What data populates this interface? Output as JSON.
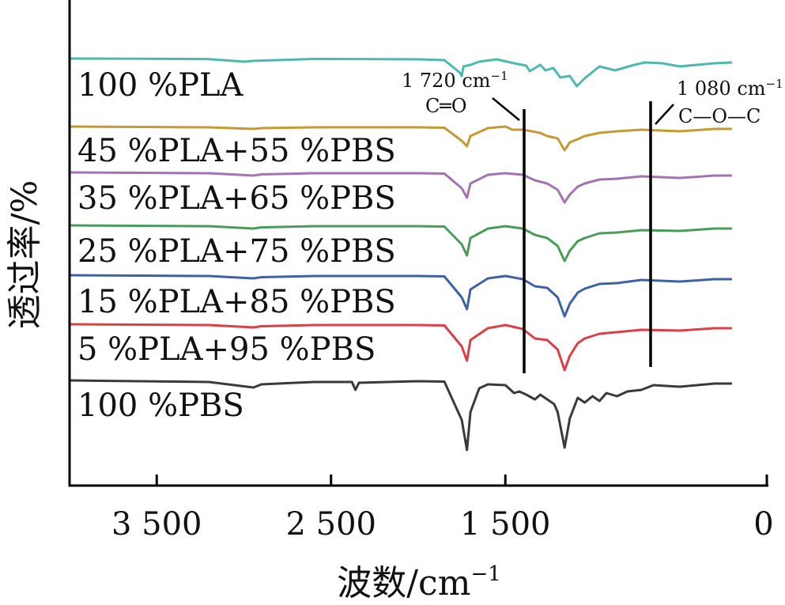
{
  "chart_data": {
    "type": "line",
    "title": "",
    "xlabel": "波数/cm",
    "xlabel_superscript": "−1",
    "ylabel": "透过率/%",
    "xlim": [
      4000,
      0
    ],
    "x_reversed": true,
    "x_ticks": [
      {
        "value": 3500,
        "label": "3 500"
      },
      {
        "value": 2500,
        "label": "2 500"
      },
      {
        "value": 1500,
        "label": "1 500"
      },
      {
        "value": 0,
        "label": "0"
      }
    ],
    "grid": false,
    "legend": "inline-labels-left",
    "x_range_plotted": [
      4000,
      200
    ],
    "series": [
      {
        "name": "100 %PLA",
        "color": "#4fb8ad",
        "points": [
          [
            4000,
            0
          ],
          [
            3600,
            0.2
          ],
          [
            3200,
            0.7
          ],
          [
            2997,
            4
          ],
          [
            2950,
            3
          ],
          [
            2600,
            0.5
          ],
          [
            2000,
            1
          ],
          [
            1850,
            2
          ],
          [
            1760,
            18
          ],
          [
            1750,
            22
          ],
          [
            1740,
            10
          ],
          [
            1700,
            8
          ],
          [
            1650,
            4
          ],
          [
            1550,
            1
          ],
          [
            1450,
            6
          ],
          [
            1380,
            9
          ],
          [
            1360,
            16
          ],
          [
            1300,
            8
          ],
          [
            1270,
            15
          ],
          [
            1225,
            12
          ],
          [
            1185,
            24
          ],
          [
            1130,
            22
          ],
          [
            1090,
            35
          ],
          [
            1045,
            25
          ],
          [
            960,
            10
          ],
          [
            870,
            15
          ],
          [
            760,
            8
          ],
          [
            700,
            5
          ],
          [
            600,
            6
          ],
          [
            500,
            10
          ],
          [
            300,
            6
          ],
          [
            200,
            5
          ]
        ]
      },
      {
        "name": "45 %PLA+55 %PBS",
        "color": "#c49a35",
        "points": [
          [
            4000,
            0
          ],
          [
            3600,
            0.5
          ],
          [
            3200,
            1
          ],
          [
            2945,
            3
          ],
          [
            2900,
            2
          ],
          [
            2600,
            1
          ],
          [
            2000,
            1
          ],
          [
            1850,
            1.5
          ],
          [
            1750,
            18
          ],
          [
            1720,
            25
          ],
          [
            1700,
            12
          ],
          [
            1600,
            2
          ],
          [
            1500,
            0
          ],
          [
            1460,
            4
          ],
          [
            1400,
            4
          ],
          [
            1300,
            8
          ],
          [
            1260,
            12
          ],
          [
            1200,
            15
          ],
          [
            1160,
            30
          ],
          [
            1130,
            20
          ],
          [
            1085,
            16
          ],
          [
            1045,
            12
          ],
          [
            960,
            8
          ],
          [
            860,
            6
          ],
          [
            720,
            4
          ],
          [
            500,
            6
          ],
          [
            300,
            3
          ],
          [
            200,
            3
          ]
        ]
      },
      {
        "name": "35 %PLA+65 %PBS",
        "color": "#a374b3",
        "points": [
          [
            4000,
            0
          ],
          [
            3600,
            0.5
          ],
          [
            3200,
            1
          ],
          [
            2945,
            4
          ],
          [
            2900,
            2.5
          ],
          [
            2600,
            1
          ],
          [
            2000,
            1
          ],
          [
            1850,
            1.5
          ],
          [
            1750,
            20
          ],
          [
            1720,
            32
          ],
          [
            1700,
            14
          ],
          [
            1600,
            3
          ],
          [
            1500,
            1
          ],
          [
            1400,
            3
          ],
          [
            1330,
            10
          ],
          [
            1260,
            14
          ],
          [
            1200,
            22
          ],
          [
            1160,
            38
          ],
          [
            1130,
            28
          ],
          [
            1085,
            18
          ],
          [
            1045,
            14
          ],
          [
            960,
            9
          ],
          [
            860,
            8
          ],
          [
            720,
            5
          ],
          [
            500,
            7
          ],
          [
            300,
            4
          ],
          [
            200,
            4
          ]
        ]
      },
      {
        "name": "25 %PLA+75 %PBS",
        "color": "#4a9b5c",
        "points": [
          [
            4000,
            0
          ],
          [
            3600,
            0.5
          ],
          [
            3200,
            1
          ],
          [
            2945,
            4
          ],
          [
            2900,
            2.5
          ],
          [
            2600,
            1
          ],
          [
            2000,
            1
          ],
          [
            1850,
            1.5
          ],
          [
            1750,
            24
          ],
          [
            1720,
            38
          ],
          [
            1700,
            16
          ],
          [
            1600,
            4
          ],
          [
            1500,
            1
          ],
          [
            1400,
            4
          ],
          [
            1330,
            12
          ],
          [
            1260,
            16
          ],
          [
            1200,
            26
          ],
          [
            1160,
            45
          ],
          [
            1130,
            32
          ],
          [
            1085,
            20
          ],
          [
            1045,
            16
          ],
          [
            960,
            10
          ],
          [
            860,
            9
          ],
          [
            720,
            6
          ],
          [
            500,
            7
          ],
          [
            300,
            4
          ],
          [
            200,
            4
          ]
        ]
      },
      {
        "name": "15 %PLA+85 %PBS",
        "color": "#3e62a5",
        "points": [
          [
            4000,
            0
          ],
          [
            3600,
            0.5
          ],
          [
            3200,
            1
          ],
          [
            2945,
            4
          ],
          [
            2900,
            2.5
          ],
          [
            2600,
            1
          ],
          [
            2000,
            1
          ],
          [
            1850,
            1.5
          ],
          [
            1750,
            28
          ],
          [
            1720,
            43
          ],
          [
            1700,
            18
          ],
          [
            1600,
            4
          ],
          [
            1500,
            1
          ],
          [
            1400,
            5
          ],
          [
            1330,
            14
          ],
          [
            1260,
            16
          ],
          [
            1200,
            28
          ],
          [
            1160,
            52
          ],
          [
            1130,
            36
          ],
          [
            1085,
            22
          ],
          [
            1045,
            17
          ],
          [
            960,
            11
          ],
          [
            860,
            10
          ],
          [
            720,
            6
          ],
          [
            500,
            8
          ],
          [
            300,
            5
          ],
          [
            200,
            5
          ]
        ]
      },
      {
        "name": "5 %PLA+95 %PBS",
        "color": "#d94047",
        "points": [
          [
            4000,
            0
          ],
          [
            3600,
            0.5
          ],
          [
            3200,
            1
          ],
          [
            2945,
            4
          ],
          [
            2900,
            2.5
          ],
          [
            2600,
            1
          ],
          [
            2000,
            1
          ],
          [
            1850,
            1.5
          ],
          [
            1750,
            28
          ],
          [
            1720,
            46
          ],
          [
            1700,
            20
          ],
          [
            1600,
            5
          ],
          [
            1500,
            1
          ],
          [
            1400,
            6
          ],
          [
            1330,
            18
          ],
          [
            1260,
            20
          ],
          [
            1200,
            32
          ],
          [
            1160,
            58
          ],
          [
            1130,
            40
          ],
          [
            1085,
            24
          ],
          [
            1045,
            18
          ],
          [
            960,
            12
          ],
          [
            860,
            10
          ],
          [
            720,
            7
          ],
          [
            500,
            8
          ],
          [
            300,
            5
          ],
          [
            200,
            5
          ]
        ]
      },
      {
        "name": "100 %PBS",
        "color": "#3a3a3a",
        "points": [
          [
            4000,
            0
          ],
          [
            3600,
            1
          ],
          [
            3200,
            2
          ],
          [
            2945,
            9
          ],
          [
            2900,
            5
          ],
          [
            2600,
            2
          ],
          [
            2380,
            2
          ],
          [
            2360,
            12
          ],
          [
            2340,
            3
          ],
          [
            2000,
            1
          ],
          [
            1850,
            1.5
          ],
          [
            1750,
            50
          ],
          [
            1720,
            88
          ],
          [
            1700,
            40
          ],
          [
            1650,
            10
          ],
          [
            1600,
            5
          ],
          [
            1500,
            6
          ],
          [
            1450,
            16
          ],
          [
            1420,
            14
          ],
          [
            1380,
            18
          ],
          [
            1330,
            24
          ],
          [
            1300,
            18
          ],
          [
            1260,
            24
          ],
          [
            1220,
            30
          ],
          [
            1200,
            40
          ],
          [
            1160,
            85
          ],
          [
            1130,
            48
          ],
          [
            1085,
            22
          ],
          [
            1045,
            28
          ],
          [
            1000,
            20
          ],
          [
            960,
            26
          ],
          [
            920,
            16
          ],
          [
            860,
            20
          ],
          [
            800,
            14
          ],
          [
            720,
            12
          ],
          [
            650,
            6
          ],
          [
            500,
            8
          ],
          [
            300,
            4
          ],
          [
            200,
            4
          ]
        ]
      }
    ],
    "annotations": [
      {
        "label": "1 720 cm",
        "superscript": "−1",
        "group": "C=O"
      },
      {
        "label": "C═O",
        "group": "C=O"
      },
      {
        "label": "1 080 cm",
        "superscript": "−1",
        "group": "C-O-C"
      },
      {
        "label": "C—O—C",
        "group": "C-O-C"
      }
    ]
  }
}
